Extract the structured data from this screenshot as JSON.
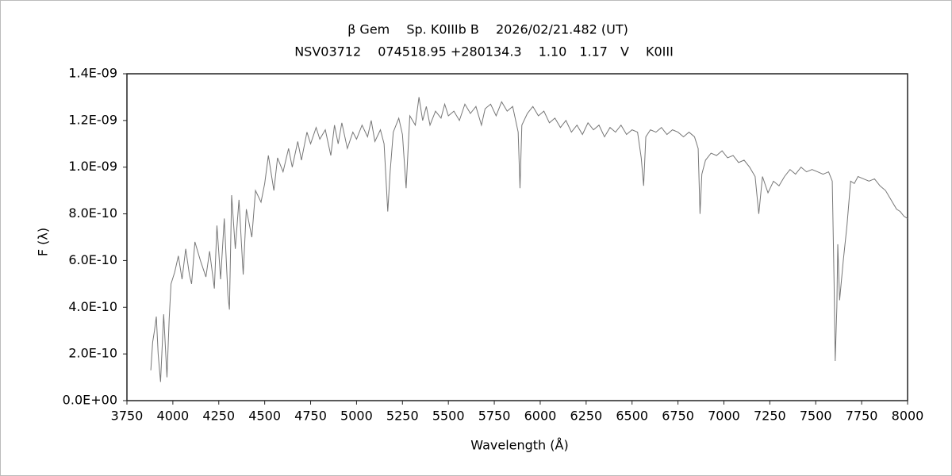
{
  "chart_data": {
    "type": "line",
    "title": "β  Gem　 Sp. K0IIIb B　 2026/02/21.482 (UT)",
    "subtitle": "NSV03712　 074518.95 +280134.3　 1.10　1.17　V　 K0III",
    "x_label": "Wavelength (Å)",
    "y_label": "F (λ)",
    "xlim": [
      3750,
      8000
    ],
    "xticks": [
      3750,
      4000,
      4250,
      4500,
      4750,
      5000,
      5250,
      5500,
      5750,
      6000,
      6250,
      6500,
      6750,
      7000,
      7250,
      7500,
      7750,
      8000
    ],
    "ylim": [
      0,
      1.4e-09
    ],
    "yticks": [
      {
        "value": 0,
        "label": "0.0E+00"
      },
      {
        "value": 2e-10,
        "label": "2.0E-10"
      },
      {
        "value": 4e-10,
        "label": "4.0E-10"
      },
      {
        "value": 6e-10,
        "label": "6.0E-10"
      },
      {
        "value": 8e-10,
        "label": "8.0E-10"
      },
      {
        "value": 1e-09,
        "label": "1.0E-09"
      },
      {
        "value": 1.2e-09,
        "label": "1.2E-09"
      },
      {
        "value": 1.4e-09,
        "label": "1.4E-09"
      }
    ],
    "grid": false,
    "x": [
      3880,
      3890,
      3900,
      3910,
      3920,
      3933,
      3950,
      3968,
      3980,
      3990,
      4010,
      4030,
      4050,
      4070,
      4090,
      4102,
      4120,
      4150,
      4180,
      4200,
      4226,
      4240,
      4260,
      4280,
      4300,
      4308,
      4320,
      4340,
      4360,
      4383,
      4400,
      4430,
      4450,
      4480,
      4500,
      4520,
      4550,
      4570,
      4600,
      4630,
      4650,
      4680,
      4700,
      4730,
      4750,
      4780,
      4800,
      4830,
      4860,
      4880,
      4900,
      4920,
      4950,
      4980,
      5000,
      5030,
      5060,
      5080,
      5100,
      5130,
      5150,
      5170,
      5183,
      5200,
      5230,
      5250,
      5270,
      5290,
      5320,
      5340,
      5360,
      5380,
      5400,
      5430,
      5460,
      5480,
      5500,
      5530,
      5560,
      5590,
      5620,
      5650,
      5680,
      5700,
      5730,
      5760,
      5790,
      5820,
      5850,
      5880,
      5890,
      5900,
      5930,
      5960,
      5990,
      6020,
      6050,
      6080,
      6110,
      6140,
      6170,
      6200,
      6230,
      6260,
      6290,
      6320,
      6350,
      6380,
      6410,
      6440,
      6470,
      6500,
      6530,
      6550,
      6563,
      6575,
      6600,
      6630,
      6660,
      6690,
      6720,
      6750,
      6780,
      6810,
      6840,
      6860,
      6870,
      6880,
      6900,
      6930,
      6960,
      6990,
      7020,
      7050,
      7080,
      7110,
      7140,
      7170,
      7190,
      7210,
      7240,
      7270,
      7300,
      7330,
      7360,
      7390,
      7420,
      7450,
      7480,
      7510,
      7540,
      7570,
      7590,
      7600,
      7606,
      7615,
      7620,
      7630,
      7650,
      7670,
      7690,
      7710,
      7730,
      7760,
      7790,
      7820,
      7850,
      7880,
      7910,
      7940,
      7960,
      7980,
      8000
    ],
    "series": [
      {
        "color": "#777777",
        "values": [
          1.3e-10,
          2.5e-10,
          3e-10,
          3.6e-10,
          2e-10,
          8e-11,
          3.7e-10,
          1e-10,
          3.5e-10,
          5e-10,
          5.5e-10,
          6.2e-10,
          5.2e-10,
          6.5e-10,
          5.4e-10,
          5e-10,
          6.8e-10,
          6e-10,
          5.3e-10,
          6.4e-10,
          4.8e-10,
          7.5e-10,
          5.2e-10,
          7.8e-10,
          4.5e-10,
          3.9e-10,
          8.8e-10,
          6.5e-10,
          8.6e-10,
          5.4e-10,
          8.2e-10,
          7e-10,
          9e-10,
          8.5e-10,
          9.3e-10,
          1.05e-09,
          9e-10,
          1.04e-09,
          9.8e-10,
          1.08e-09,
          1e-09,
          1.11e-09,
          1.03e-09,
          1.15e-09,
          1.1e-09,
          1.17e-09,
          1.12e-09,
          1.16e-09,
          1.05e-09,
          1.18e-09,
          1.1e-09,
          1.19e-09,
          1.08e-09,
          1.15e-09,
          1.12e-09,
          1.18e-09,
          1.13e-09,
          1.2e-09,
          1.11e-09,
          1.16e-09,
          1.1e-09,
          8.1e-10,
          9.8e-10,
          1.15e-09,
          1.21e-09,
          1.14e-09,
          9.1e-10,
          1.22e-09,
          1.18e-09,
          1.3e-09,
          1.2e-09,
          1.26e-09,
          1.18e-09,
          1.24e-09,
          1.21e-09,
          1.27e-09,
          1.22e-09,
          1.24e-09,
          1.2e-09,
          1.27e-09,
          1.23e-09,
          1.26e-09,
          1.18e-09,
          1.25e-09,
          1.27e-09,
          1.22e-09,
          1.28e-09,
          1.24e-09,
          1.26e-09,
          1.15e-09,
          9.1e-10,
          1.18e-09,
          1.23e-09,
          1.26e-09,
          1.22e-09,
          1.24e-09,
          1.19e-09,
          1.21e-09,
          1.17e-09,
          1.2e-09,
          1.15e-09,
          1.18e-09,
          1.14e-09,
          1.19e-09,
          1.16e-09,
          1.18e-09,
          1.13e-09,
          1.17e-09,
          1.15e-09,
          1.18e-09,
          1.14e-09,
          1.16e-09,
          1.15e-09,
          1.04e-09,
          9.2e-10,
          1.13e-09,
          1.16e-09,
          1.15e-09,
          1.17e-09,
          1.14e-09,
          1.16e-09,
          1.15e-09,
          1.13e-09,
          1.15e-09,
          1.13e-09,
          1.08e-09,
          8e-10,
          9.7e-10,
          1.03e-09,
          1.06e-09,
          1.05e-09,
          1.07e-09,
          1.04e-09,
          1.05e-09,
          1.02e-09,
          1.03e-09,
          1e-09,
          9.6e-10,
          8e-10,
          9.6e-10,
          8.9e-10,
          9.4e-10,
          9.2e-10,
          9.6e-10,
          9.9e-10,
          9.7e-10,
          1e-09,
          9.8e-10,
          9.9e-10,
          9.8e-10,
          9.7e-10,
          9.8e-10,
          9.4e-10,
          5e-10,
          1.7e-10,
          4e-10,
          6.7e-10,
          4.3e-10,
          6e-10,
          7.5e-10,
          9.4e-10,
          9.3e-10,
          9.6e-10,
          9.5e-10,
          9.4e-10,
          9.5e-10,
          9.2e-10,
          9e-10,
          8.6e-10,
          8.2e-10,
          8.1e-10,
          7.9e-10,
          7.8e-10
        ]
      }
    ]
  }
}
